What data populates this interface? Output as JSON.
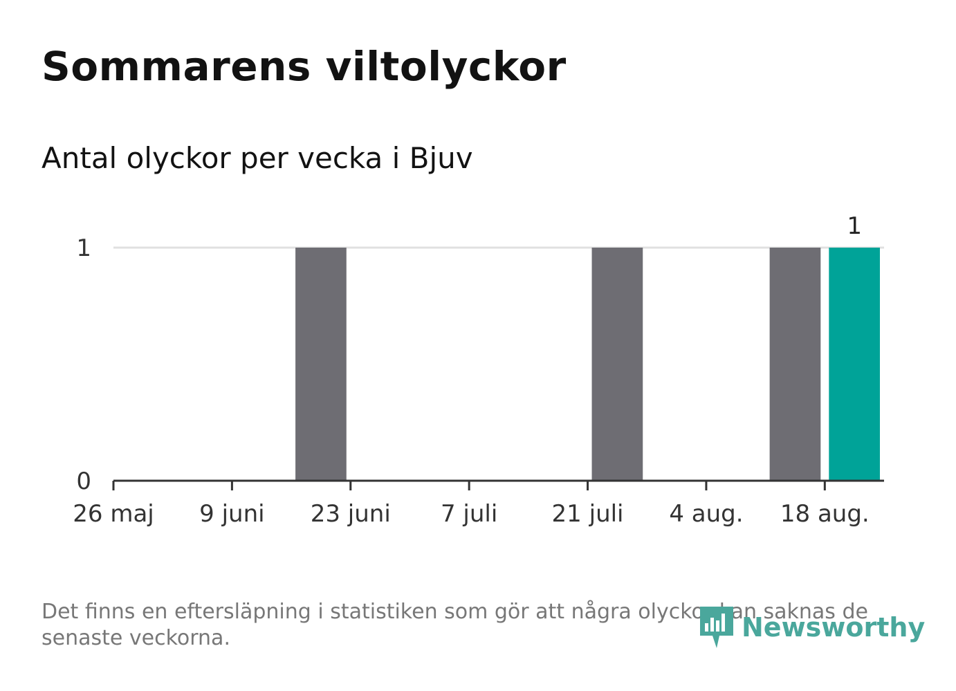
{
  "header": {
    "title": "Sommarens viltolyckor",
    "subtitle": "Antal olyckor per vecka i Bjuv"
  },
  "footer": {
    "note": "Det finns en eftersläpning i statistiken som gör att några olyckor kan saknas de senaste veckorna.",
    "brand": "Newsworthy"
  },
  "colors": {
    "bar": "#6e6d73",
    "highlight": "#00a398",
    "grid": "#e0e0e0",
    "axis": "#333333",
    "brand": "#4aa79c"
  },
  "chart_data": {
    "type": "bar",
    "title": "Sommarens viltolyckor",
    "subtitle": "Antal olyckor per vecka i Bjuv",
    "xlabel": "",
    "ylabel": "",
    "ylim": [
      0,
      1
    ],
    "yticks": [
      "0",
      "1"
    ],
    "xticks": [
      "26 maj",
      "9 juni",
      "23 juni",
      "7 juli",
      "21 juli",
      "4 aug.",
      "18 aug."
    ],
    "x": [
      "2025-05-26",
      "2025-06-02",
      "2025-06-09",
      "2025-06-16",
      "2025-06-23",
      "2025-06-30",
      "2025-07-07",
      "2025-07-14",
      "2025-07-21",
      "2025-07-28",
      "2025-08-04",
      "2025-08-11",
      "2025-08-18"
    ],
    "values": [
      0,
      0,
      0,
      1,
      0,
      0,
      0,
      0,
      1,
      0,
      0,
      1,
      1
    ],
    "highlight_index": 12,
    "highlight_label": "1",
    "grid": true
  }
}
